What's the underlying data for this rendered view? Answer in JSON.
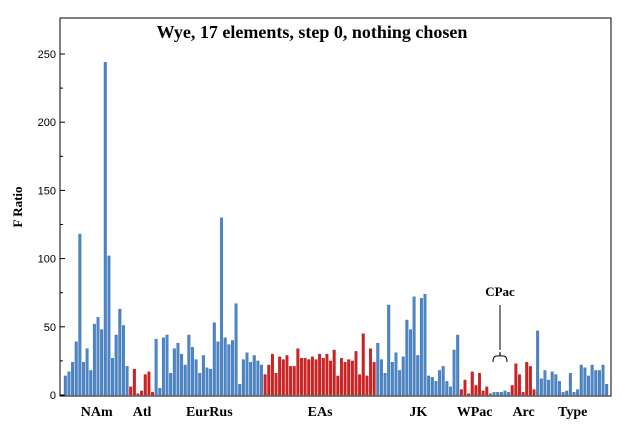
{
  "chart_data": {
    "type": "bar",
    "title": "Wye, 17 elements, step 0, nothing chosen",
    "ylabel": "F Ratio",
    "xlabel": "",
    "ylim": [
      0,
      260
    ],
    "yticks": [
      0,
      50,
      100,
      150,
      200,
      250
    ],
    "grid": false,
    "colors": {
      "blue": "#4a86c8",
      "red": "#d42020"
    },
    "groups": [
      {
        "label": "NAm",
        "color": "blue",
        "values": [
          14,
          17,
          24,
          39,
          118,
          24,
          34,
          18,
          52,
          57,
          48,
          244,
          102,
          27,
          44,
          63,
          51,
          21
        ]
      },
      {
        "label": "Atl",
        "color": "red",
        "values": [
          6,
          19,
          1,
          3,
          15,
          17,
          2
        ]
      },
      {
        "label": "EurRus",
        "color": "blue",
        "values": [
          41,
          5,
          42,
          44,
          16,
          34,
          38,
          30,
          22,
          44,
          35,
          26,
          16,
          29,
          20,
          19,
          53,
          39,
          130,
          42,
          37,
          40,
          67,
          8,
          26,
          31,
          24,
          29,
          25,
          22
        ]
      },
      {
        "label": "EAs",
        "color": "red",
        "values": [
          15,
          22,
          30,
          16,
          28,
          26,
          29,
          21,
          21,
          34,
          27,
          27,
          26,
          28,
          26,
          30,
          27,
          30,
          25,
          33,
          14,
          27,
          24,
          26,
          25,
          32,
          15,
          45,
          14,
          34,
          24
        ]
      },
      {
        "label": "JK",
        "color": "blue",
        "values": [
          38,
          26,
          16,
          66,
          24,
          31,
          18,
          28,
          55,
          48,
          72,
          29,
          71,
          74,
          14,
          13,
          10,
          18,
          21,
          10,
          6,
          33,
          44
        ]
      },
      {
        "label": "WPac",
        "color": "red",
        "values": [
          4,
          11,
          1,
          17,
          7,
          16,
          3,
          6
        ]
      },
      {
        "label": "CPac",
        "color": "blue",
        "values": [
          1,
          2,
          2,
          2,
          3,
          2
        ]
      },
      {
        "label": "Arc",
        "color": "red",
        "values": [
          7,
          23,
          15,
          2,
          24,
          21,
          4
        ]
      },
      {
        "label": "Type",
        "color": "blue",
        "values": [
          47,
          12,
          18,
          11,
          17,
          15,
          10,
          2,
          3,
          16,
          2,
          4,
          22,
          20,
          14,
          22,
          18,
          18,
          22,
          8
        ]
      }
    ],
    "annotations": [
      {
        "text": "CPac",
        "target_group": "CPac"
      }
    ]
  }
}
